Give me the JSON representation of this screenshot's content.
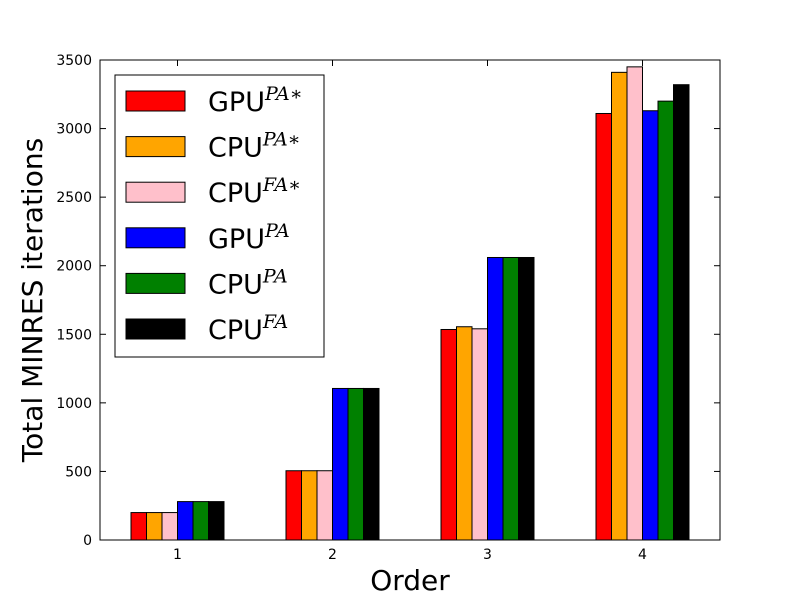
{
  "chart_data": {
    "type": "bar",
    "title": "",
    "xlabel": "Order",
    "ylabel": "Total MINRES iterations",
    "categories": [
      "1",
      "2",
      "3",
      "4"
    ],
    "ylim": [
      0,
      3500
    ],
    "yticks": [
      "0",
      "500",
      "1000",
      "1500",
      "2000",
      "2500",
      "3000",
      "3500"
    ],
    "legend_position": "top-left",
    "grid": false,
    "series": [
      {
        "name_base": "GPU",
        "name_sup": "PA∗",
        "color": "#ff0000",
        "values": [
          200,
          505,
          1535,
          3110
        ]
      },
      {
        "name_base": "CPU",
        "name_sup": "PA∗",
        "color": "#ffa500",
        "values": [
          200,
          505,
          1555,
          3410
        ]
      },
      {
        "name_base": "CPU",
        "name_sup": "FA∗",
        "color": "#ffc0cb",
        "values": [
          200,
          505,
          1540,
          3450
        ]
      },
      {
        "name_base": "GPU",
        "name_sup": "PA",
        "color": "#0000ff",
        "values": [
          280,
          1105,
          2060,
          3130
        ]
      },
      {
        "name_base": "CPU",
        "name_sup": "PA",
        "color": "#008000",
        "values": [
          280,
          1105,
          2060,
          3200
        ]
      },
      {
        "name_base": "CPU",
        "name_sup": "FA",
        "color": "#000000",
        "values": [
          280,
          1105,
          2060,
          3320
        ]
      }
    ]
  }
}
